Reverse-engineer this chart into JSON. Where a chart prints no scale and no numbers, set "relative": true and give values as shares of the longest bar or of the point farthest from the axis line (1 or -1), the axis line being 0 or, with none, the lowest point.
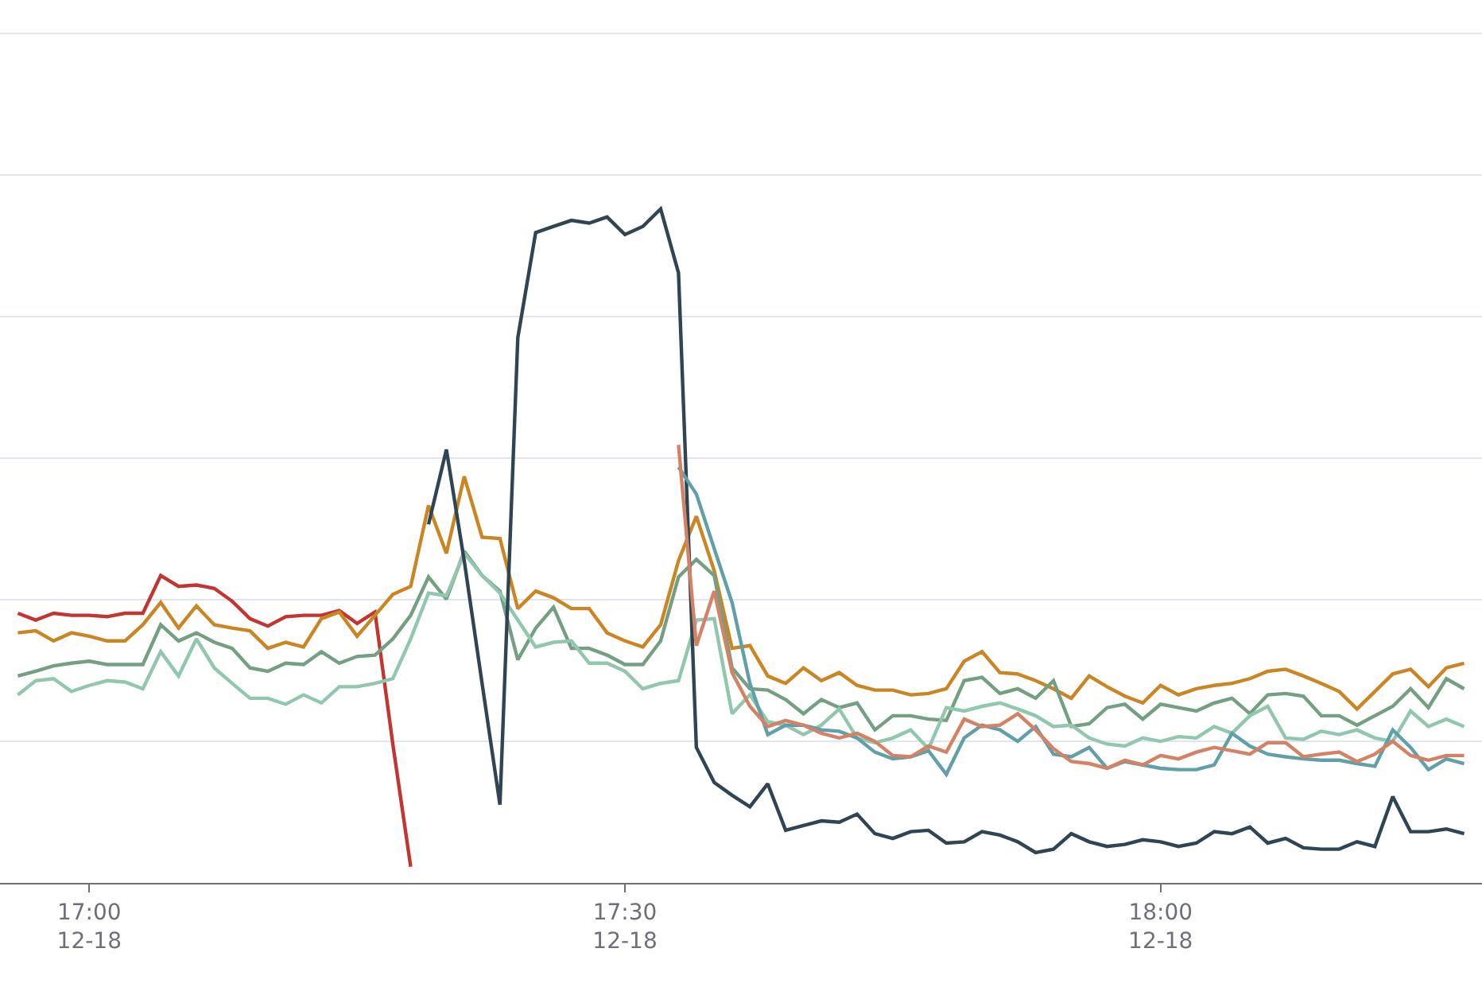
{
  "chart_data": {
    "type": "line",
    "relative": true,
    "grid": "y",
    "marker": "none",
    "line_style": "solid",
    "x": [
      "--12-18T16:56",
      "--12-18T16:57",
      "--12-18T16:58",
      "--12-18T16:59",
      "--12-18T17:00",
      "--12-18T17:01",
      "--12-18T17:02",
      "--12-18T17:03",
      "--12-18T17:04",
      "--12-18T17:05",
      "--12-18T17:06",
      "--12-18T17:07",
      "--12-18T17:08",
      "--12-18T17:09",
      "--12-18T17:10",
      "--12-18T17:11",
      "--12-18T17:12",
      "--12-18T17:13",
      "--12-18T17:14",
      "--12-18T17:15",
      "--12-18T17:16",
      "--12-18T17:17",
      "--12-18T17:18",
      "--12-18T17:19",
      "--12-18T17:20",
      "--12-18T17:21",
      "--12-18T17:22",
      "--12-18T17:23",
      "--12-18T17:24",
      "--12-18T17:25",
      "--12-18T17:26",
      "--12-18T17:27",
      "--12-18T17:28",
      "--12-18T17:29",
      "--12-18T17:30",
      "--12-18T17:31",
      "--12-18T17:32",
      "--12-18T17:33",
      "--12-18T17:34",
      "--12-18T17:35",
      "--12-18T17:36",
      "--12-18T17:37",
      "--12-18T17:38",
      "--12-18T17:39",
      "--12-18T17:40",
      "--12-18T17:41",
      "--12-18T17:42",
      "--12-18T17:43",
      "--12-18T17:44",
      "--12-18T17:45",
      "--12-18T17:46",
      "--12-18T17:47",
      "--12-18T17:48",
      "--12-18T17:49",
      "--12-18T17:50",
      "--12-18T17:51",
      "--12-18T17:52",
      "--12-18T17:53",
      "--12-18T17:54",
      "--12-18T17:55",
      "--12-18T17:56",
      "--12-18T17:57",
      "--12-18T17:58",
      "--12-18T17:59",
      "--12-18T18:00",
      "--12-18T18:01",
      "--12-18T18:02",
      "--12-18T18:03",
      "--12-18T18:04",
      "--12-18T18:05",
      "--12-18T18:06",
      "--12-18T18:07",
      "--12-18T18:08",
      "--12-18T18:09",
      "--12-18T18:10",
      "--12-18T18:11",
      "--12-18T18:12",
      "--12-18T18:13",
      "--12-18T18:14",
      "--12-18T18:15",
      "--12-18T18:16",
      "--12-18T18:17"
    ],
    "xlim": [
      "--12-18T16:55",
      "--12-18T18:18"
    ],
    "xticks": [
      {
        "value": "--12-18T17:00",
        "label": "17:00\n12-18"
      },
      {
        "value": "--12-18T17:30",
        "label": "17:30\n12-18"
      },
      {
        "value": "--12-18T18:00",
        "label": "18:00\n12-18"
      }
    ],
    "series": [
      {
        "color": "#c23531",
        "values": [
          0.4,
          0.39,
          0.4,
          0.397,
          0.397,
          0.395,
          0.4,
          0.4,
          0.456,
          0.44,
          0.442,
          0.437,
          0.418,
          0.392,
          0.381,
          0.395,
          0.397,
          0.397,
          0.404,
          0.385,
          0.402,
          0.206,
          0.024,
          null,
          null,
          null,
          null,
          null,
          null,
          null,
          null,
          null,
          null,
          null,
          null,
          null,
          null,
          null,
          null,
          null,
          null,
          null,
          null,
          null,
          null,
          null,
          null,
          null,
          null,
          null,
          null,
          null,
          null,
          null,
          null,
          null,
          null,
          null,
          null,
          null,
          null,
          null,
          null,
          null,
          null,
          null,
          null,
          null,
          null,
          null,
          null,
          null,
          null,
          null,
          null,
          null,
          null,
          null,
          null,
          null,
          null,
          null
        ]
      },
      {
        "color": "#ca8622",
        "values": [
          0.371,
          0.374,
          0.359,
          0.371,
          0.366,
          0.359,
          0.359,
          0.383,
          0.416,
          0.378,
          0.411,
          0.383,
          0.378,
          0.374,
          0.348,
          0.357,
          0.35,
          0.392,
          0.402,
          0.366,
          0.397,
          0.428,
          0.44,
          0.56,
          0.489,
          0.603,
          0.513,
          0.511,
          0.407,
          0.433,
          0.423,
          0.407,
          0.407,
          0.371,
          0.359,
          0.35,
          0.383,
          0.478,
          0.544,
          0.463,
          0.348,
          0.352,
          0.307,
          0.296,
          0.319,
          0.3,
          0.312,
          0.293,
          0.286,
          0.286,
          0.279,
          0.281,
          0.288,
          0.329,
          0.343,
          0.312,
          0.31,
          0.3,
          0.288,
          0.274,
          0.307,
          0.291,
          0.277,
          0.267,
          0.293,
          0.279,
          0.288,
          0.293,
          0.296,
          0.303,
          0.314,
          0.317,
          0.307,
          0.296,
          0.284,
          0.258,
          0.284,
          0.31,
          0.317,
          0.291,
          0.319,
          0.326
        ]
      },
      {
        "color": "#749f83",
        "values": [
          0.307,
          0.314,
          0.322,
          0.326,
          0.329,
          0.324,
          0.324,
          0.324,
          0.383,
          0.359,
          0.371,
          0.357,
          0.348,
          0.319,
          0.314,
          0.326,
          0.324,
          0.343,
          0.326,
          0.336,
          0.338,
          0.362,
          0.397,
          0.454,
          0.421,
          0.492,
          0.456,
          0.433,
          0.331,
          0.378,
          0.409,
          0.348,
          0.348,
          0.338,
          0.324,
          0.324,
          0.359,
          0.454,
          0.48,
          0.456,
          0.319,
          0.288,
          0.286,
          0.272,
          0.251,
          0.272,
          0.26,
          0.267,
          0.227,
          0.248,
          0.248,
          0.243,
          0.241,
          0.3,
          0.305,
          0.281,
          0.288,
          0.274,
          0.3,
          0.232,
          0.236,
          0.26,
          0.265,
          0.243,
          0.265,
          0.26,
          0.255,
          0.267,
          0.274,
          0.251,
          0.279,
          0.281,
          0.277,
          0.248,
          0.248,
          0.234,
          0.248,
          0.262,
          0.288,
          0.26,
          0.303,
          0.288
        ]
      },
      {
        "color": "#91c7ae",
        "values": [
          0.279,
          0.3,
          0.303,
          0.284,
          0.293,
          0.3,
          0.298,
          0.288,
          0.343,
          0.307,
          0.362,
          0.319,
          0.296,
          0.274,
          0.274,
          0.265,
          0.279,
          0.267,
          0.291,
          0.291,
          0.296,
          0.303,
          0.362,
          0.43,
          0.426,
          0.489,
          0.456,
          0.43,
          0.39,
          0.35,
          0.357,
          0.359,
          0.326,
          0.326,
          0.314,
          0.288,
          0.296,
          0.3,
          0.39,
          0.392,
          0.251,
          0.279,
          0.239,
          0.234,
          0.22,
          0.234,
          0.258,
          0.215,
          0.208,
          0.215,
          0.227,
          0.199,
          0.26,
          0.255,
          0.262,
          0.267,
          0.258,
          0.248,
          0.232,
          0.234,
          0.215,
          0.206,
          0.203,
          0.215,
          0.21,
          0.217,
          0.215,
          0.232,
          0.222,
          0.248,
          0.262,
          0.215,
          0.213,
          0.225,
          0.22,
          0.227,
          0.215,
          0.21,
          0.255,
          0.232,
          0.243,
          0.232
        ]
      },
      {
        "color": "#2f4554",
        "values": [
          null,
          null,
          null,
          null,
          null,
          null,
          null,
          null,
          null,
          null,
          null,
          null,
          null,
          null,
          null,
          null,
          null,
          null,
          null,
          null,
          null,
          null,
          null,
          0.532,
          0.643,
          0.478,
          0.296,
          0.116,
          0.809,
          0.965,
          0.974,
          0.983,
          0.979,
          0.988,
          0.962,
          0.974,
          1.0,
          0.905,
          0.201,
          0.149,
          0.13,
          0.113,
          0.147,
          0.078,
          0.085,
          0.092,
          0.09,
          0.102,
          0.073,
          0.066,
          0.076,
          0.078,
          0.059,
          0.061,
          0.076,
          0.071,
          0.061,
          0.045,
          0.05,
          0.073,
          0.061,
          0.054,
          0.057,
          0.064,
          0.061,
          0.054,
          0.059,
          0.076,
          0.073,
          0.083,
          0.059,
          0.066,
          0.052,
          0.05,
          0.05,
          0.061,
          0.054,
          0.128,
          0.076,
          0.076,
          0.08,
          0.073
        ]
      },
      {
        "color": "#61a0a8",
        "values": [
          null,
          null,
          null,
          null,
          null,
          null,
          null,
          null,
          null,
          null,
          null,
          null,
          null,
          null,
          null,
          null,
          null,
          null,
          null,
          null,
          null,
          null,
          null,
          null,
          null,
          null,
          null,
          null,
          null,
          null,
          null,
          null,
          null,
          null,
          null,
          null,
          null,
          0.617,
          0.577,
          0.496,
          0.416,
          0.296,
          0.22,
          0.234,
          0.234,
          0.227,
          0.225,
          0.215,
          0.194,
          0.184,
          0.187,
          0.196,
          0.161,
          0.215,
          0.234,
          0.227,
          0.21,
          0.232,
          0.191,
          0.187,
          0.201,
          0.17,
          0.18,
          0.175,
          0.17,
          0.168,
          0.168,
          0.175,
          0.222,
          0.203,
          0.191,
          0.187,
          0.184,
          0.182,
          0.182,
          0.177,
          0.173,
          0.227,
          0.201,
          0.168,
          0.184,
          0.177
        ]
      },
      {
        "color": "#d48265",
        "values": [
          null,
          null,
          null,
          null,
          null,
          null,
          null,
          null,
          null,
          null,
          null,
          null,
          null,
          null,
          null,
          null,
          null,
          null,
          null,
          null,
          null,
          null,
          null,
          null,
          null,
          null,
          null,
          null,
          null,
          null,
          null,
          null,
          null,
          null,
          null,
          null,
          null,
          0.65,
          0.352,
          0.433,
          0.312,
          0.262,
          0.232,
          0.241,
          0.234,
          0.222,
          0.215,
          0.222,
          0.21,
          0.189,
          0.187,
          0.203,
          0.194,
          0.243,
          0.232,
          0.234,
          0.251,
          0.227,
          0.199,
          0.18,
          0.177,
          0.17,
          0.182,
          0.175,
          0.189,
          0.184,
          0.194,
          0.201,
          0.196,
          0.191,
          0.208,
          0.208,
          0.187,
          0.191,
          0.194,
          0.18,
          0.191,
          0.21,
          0.189,
          0.182,
          0.189,
          0.189
        ]
      }
    ]
  }
}
